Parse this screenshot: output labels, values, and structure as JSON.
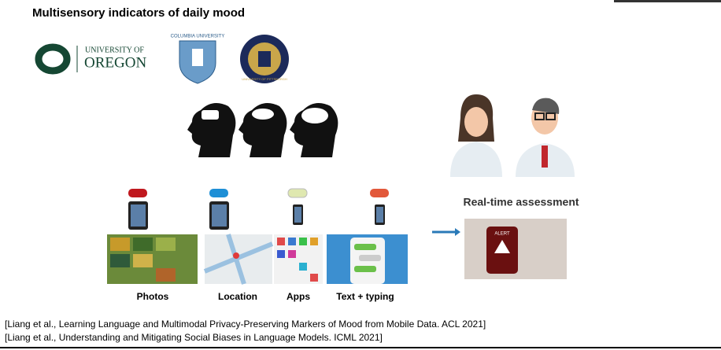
{
  "slide": {
    "title": "Multisensory indicators of daily mood",
    "logos": {
      "oregon_top": "UNIVERSITY OF",
      "oregon_bottom": "OREGON",
      "columbia": "COLUMBIA UNIVERSITY",
      "pitt": "UNIVERSITY OF PITTSBURGH"
    },
    "sources": [
      "Photos",
      "Location",
      "Apps",
      "Text + typing"
    ],
    "assessment": "Real-time assessment",
    "alert": "ALERT",
    "references": [
      "[Liang et al., Learning Language and Multimodal Privacy-Preserving Markers of Mood from Mobile Data. ACL 2021]",
      "[Liang et al., Understanding and Mitigating Social Biases in Language Models. ICML 2021]"
    ]
  }
}
